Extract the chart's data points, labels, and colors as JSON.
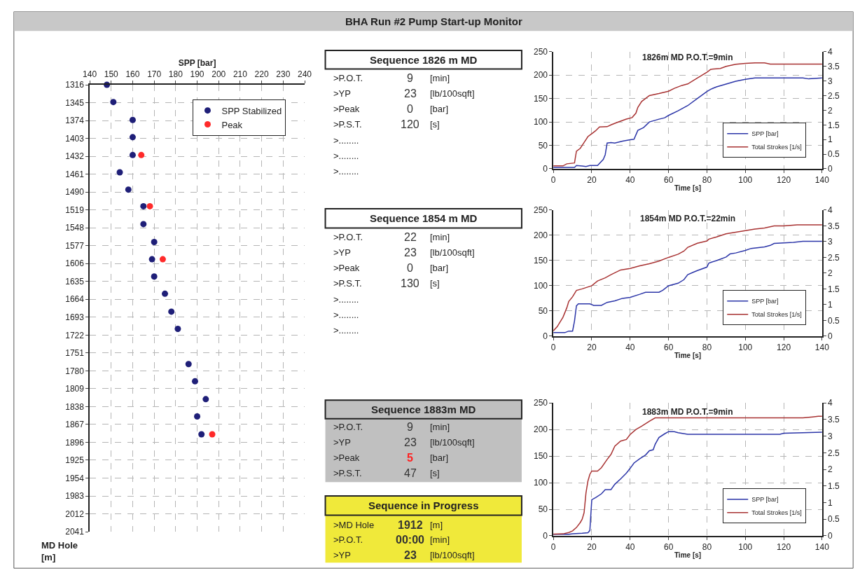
{
  "chart_data": [
    {
      "type": "other",
      "title": "BHA Run #2 Pump Start-up Monitor"
    },
    {
      "type": "scatter",
      "xlabel": "SPP [bar]",
      "ylabel": "MD Hole\n[m]",
      "xlim": [
        140,
        240
      ],
      "xticks": [
        140,
        150,
        160,
        170,
        180,
        190,
        200,
        210,
        220,
        230,
        240
      ],
      "ylim": [
        2041,
        1316
      ],
      "yticks": [
        1316,
        1345,
        1374,
        1403,
        1432,
        1461,
        1490,
        1519,
        1548,
        1577,
        1606,
        1635,
        1664,
        1693,
        1722,
        1751,
        1780,
        1809,
        1838,
        1867,
        1896,
        1925,
        1954,
        1983,
        2012,
        2041
      ],
      "grid": true,
      "legend": "top right",
      "marker": "circle",
      "series": [
        {
          "name": "SPP Stabilized",
          "color": "#1f1f78",
          "x": [
            148,
            151,
            160,
            160,
            160,
            154,
            158,
            165,
            165,
            170,
            169,
            170,
            175,
            178,
            181,
            186,
            189,
            194,
            190,
            192
          ],
          "values": [
            1316,
            1344,
            1373,
            1401,
            1430,
            1458,
            1486,
            1513,
            1542,
            1571,
            1599,
            1627,
            1655,
            1684,
            1712,
            1769,
            1797,
            1826,
            1854,
            1883
          ]
        },
        {
          "name": "Peak",
          "color": "#ff2a2a",
          "x": [
            164,
            168,
            174,
            197
          ],
          "values": [
            1430,
            1513,
            1599,
            1883
          ]
        }
      ]
    },
    {
      "type": "other",
      "title": "Sequence 1826 m MD",
      "categories": [
        ">P.O.T.",
        ">YP",
        ">Peak",
        ">P.S.T.",
        ">........",
        ">........",
        ">........"
      ],
      "value_labels": [
        "9",
        "23",
        "0",
        "120",
        null,
        null,
        null
      ],
      "annotations": [
        "[min]",
        "[lb/100sqft]",
        "[bar]",
        "[s]"
      ]
    },
    {
      "type": "line",
      "title": "1826m MD P.O.T.=9min",
      "xlabel": "Time [s]",
      "xlim": [
        0,
        140
      ],
      "xticks": [
        0,
        20,
        40,
        60,
        80,
        100,
        120,
        140
      ],
      "ylim": [
        0,
        250
      ],
      "yticks": [
        0,
        50,
        100,
        150,
        200,
        250
      ],
      "y2lim": [
        0,
        4
      ],
      "y2ticks": [
        0,
        0.5,
        1,
        1.5,
        2,
        2.5,
        3,
        3.5,
        4
      ],
      "grid": true,
      "legend": "bottom right",
      "series": [
        {
          "name": "SPP [bar]",
          "color": "#2b35a8",
          "x": [
            0,
            11,
            12,
            15,
            17,
            19,
            23,
            26,
            27,
            28,
            30,
            32,
            36,
            40,
            42,
            44,
            47,
            50,
            55,
            58,
            60,
            65,
            70,
            75,
            80,
            82,
            85,
            90,
            95,
            100,
            105,
            130,
            133,
            140
          ],
          "values": [
            3,
            3,
            7,
            6,
            5,
            7,
            7,
            20,
            30,
            55,
            56,
            55,
            59,
            62,
            63,
            82,
            88,
            100,
            106,
            109,
            114,
            124,
            135,
            150,
            165,
            170,
            175,
            181,
            187,
            191,
            194,
            194,
            192,
            194
          ]
        },
        {
          "name": "Total Strokes [1/s]",
          "color": "#a83232",
          "axis": "y2",
          "x": [
            0,
            5,
            7,
            11,
            12,
            14,
            16,
            18,
            20,
            22,
            24,
            28,
            30,
            33,
            36,
            38,
            41,
            43,
            44,
            46,
            48,
            50,
            55,
            60,
            63,
            67,
            70,
            75,
            80,
            82,
            87,
            90,
            95,
            100,
            105,
            110,
            113,
            140
          ],
          "values": [
            0.1,
            0.1,
            0.17,
            0.2,
            0.6,
            0.7,
            0.9,
            1.1,
            1.2,
            1.3,
            1.43,
            1.44,
            1.5,
            1.58,
            1.65,
            1.7,
            1.75,
            1.9,
            2.1,
            2.3,
            2.4,
            2.5,
            2.57,
            2.65,
            2.75,
            2.85,
            2.9,
            3.1,
            3.3,
            3.4,
            3.43,
            3.5,
            3.57,
            3.6,
            3.62,
            3.62,
            3.58,
            3.58
          ]
        }
      ]
    },
    {
      "type": "other",
      "title": "Sequence 1854 m MD",
      "categories": [
        ">P.O.T.",
        ">YP",
        ">Peak",
        ">P.S.T.",
        ">........",
        ">........",
        ">........"
      ],
      "value_labels": [
        "22",
        "23",
        "0",
        "130",
        null,
        null,
        null
      ],
      "annotations": [
        "[min]",
        "[lb/100sqft]",
        "[bar]",
        "[s]"
      ]
    },
    {
      "type": "line",
      "title": "1854m MD P.O.T.=22min",
      "xlabel": "Time [s]",
      "xlim": [
        0,
        140
      ],
      "xticks": [
        0,
        20,
        40,
        60,
        80,
        100,
        120,
        140
      ],
      "ylim": [
        0,
        250
      ],
      "yticks": [
        0,
        50,
        100,
        150,
        200,
        250
      ],
      "y2lim": [
        0,
        4
      ],
      "y2ticks": [
        0,
        0.5,
        1,
        1.5,
        2,
        2.5,
        3,
        3.5,
        4
      ],
      "grid": true,
      "legend": "bottom right",
      "series": [
        {
          "name": "SPP [bar]",
          "color": "#2b35a8",
          "x": [
            0,
            6,
            8,
            10,
            11,
            12,
            13,
            19,
            21,
            25,
            28,
            32,
            36,
            40,
            45,
            48,
            55,
            57,
            60,
            65,
            68,
            70,
            73,
            75,
            80,
            81,
            85,
            90,
            92,
            95,
            100,
            103,
            110,
            113,
            115,
            120,
            125,
            130,
            140
          ],
          "values": [
            7,
            7,
            10,
            10,
            30,
            60,
            64,
            64,
            61,
            61,
            67,
            70,
            75,
            77,
            83,
            87,
            87,
            91,
            100,
            105,
            112,
            122,
            127,
            130,
            137,
            145,
            150,
            157,
            163,
            165,
            170,
            174,
            177,
            180,
            184,
            185,
            186,
            188,
            188
          ]
        },
        {
          "name": "Total Strokes [1/s]",
          "color": "#a83232",
          "axis": "y2",
          "x": [
            0,
            2,
            5,
            7,
            8,
            10,
            12,
            15,
            20,
            23,
            27,
            30,
            35,
            40,
            45,
            50,
            55,
            60,
            65,
            68,
            70,
            75,
            80,
            81,
            85,
            90,
            95,
            100,
            105,
            110,
            115,
            120,
            127,
            140
          ],
          "values": [
            0.17,
            0.3,
            0.6,
            0.9,
            1.1,
            1.25,
            1.45,
            1.5,
            1.6,
            1.75,
            1.85,
            1.95,
            2.1,
            2.15,
            2.23,
            2.3,
            2.38,
            2.5,
            2.6,
            2.7,
            2.82,
            2.95,
            3.02,
            3.08,
            3.15,
            3.25,
            3.3,
            3.35,
            3.4,
            3.43,
            3.5,
            3.5,
            3.53,
            3.53
          ]
        }
      ]
    },
    {
      "type": "other",
      "title": "Sequence 1883m MD",
      "color": "#c0c0c0",
      "categories": [
        ">P.O.T.",
        ">YP",
        ">Peak",
        ">P.S.T."
      ],
      "value_labels": [
        "9",
        "23",
        "5",
        "47"
      ],
      "colors": [
        null,
        null,
        "#ff2020",
        null
      ],
      "annotations": [
        "[min]",
        "[lb/100sqft]",
        "[bar]",
        "[s]"
      ]
    },
    {
      "type": "line",
      "title": "1883m MD P.O.T.=9min",
      "xlabel": "Time [s]",
      "xlim": [
        0,
        140
      ],
      "xticks": [
        0,
        20,
        40,
        60,
        80,
        100,
        120,
        140
      ],
      "ylim": [
        0,
        250
      ],
      "yticks": [
        0,
        50,
        100,
        150,
        200,
        250
      ],
      "y2lim": [
        0,
        4
      ],
      "y2ticks": [
        0,
        0.5,
        1,
        1.5,
        2,
        2.5,
        3,
        3.5,
        4
      ],
      "grid": true,
      "legend": "bottom right",
      "series": [
        {
          "name": "SPP [bar]",
          "color": "#2b35a8",
          "x": [
            0,
            8,
            10,
            15,
            18,
            19,
            20,
            22,
            25,
            27,
            30,
            32,
            35,
            38,
            40,
            42,
            45,
            48,
            50,
            52,
            53,
            55,
            58,
            60,
            63,
            65,
            70,
            118,
            120,
            140
          ],
          "values": [
            3,
            3,
            4,
            5,
            6,
            10,
            68,
            72,
            79,
            87,
            87,
            97,
            107,
            118,
            127,
            137,
            145,
            152,
            160,
            162,
            172,
            185,
            192,
            196,
            196,
            194,
            191,
            191,
            193,
            195
          ]
        },
        {
          "name": "Total Strokes [1/s]",
          "color": "#a83232",
          "axis": "y2",
          "x": [
            0,
            5,
            8,
            10,
            12,
            14,
            15,
            16,
            17,
            18,
            19,
            20,
            23,
            25,
            28,
            30,
            32,
            35,
            38,
            40,
            43,
            46,
            50,
            53,
            130,
            135,
            138,
            140
          ],
          "values": [
            0.05,
            0.06,
            0.1,
            0.15,
            0.25,
            0.4,
            0.5,
            0.7,
            1.3,
            1.65,
            1.85,
            1.95,
            1.95,
            2.05,
            2.3,
            2.45,
            2.7,
            2.85,
            2.9,
            3.05,
            3.2,
            3.3,
            3.45,
            3.55,
            3.55,
            3.58,
            3.6,
            3.6
          ]
        }
      ]
    },
    {
      "type": "other",
      "title": "Sequence in Progress",
      "color": "#f0e93a",
      "categories": [
        ">MD Hole",
        ">P.O.T.",
        ">YP"
      ],
      "value_labels": [
        "1912",
        "00:00",
        "23"
      ],
      "annotations": [
        "[m]",
        "[min]",
        "[lb/100sqft]"
      ]
    }
  ]
}
